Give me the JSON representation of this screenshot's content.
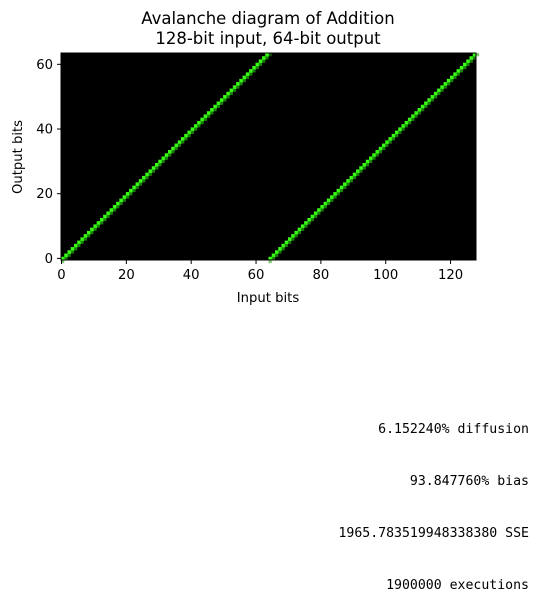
{
  "chart_data": {
    "type": "heatmap",
    "title": "Avalanche diagram of Addition",
    "subtitle": "128-bit input, 64-bit output",
    "xlabel": "Input bits",
    "ylabel": "Output bits",
    "xlim": [
      0,
      128
    ],
    "ylim": [
      0,
      64
    ],
    "xticks": [
      "0",
      "20",
      "40",
      "60",
      "80",
      "100",
      "120"
    ],
    "yticks": [
      "0",
      "20",
      "40",
      "60"
    ],
    "grid": false,
    "background_color": "#000000",
    "cell_color": "#39ff14",
    "cell_dim_color": "#1f9e0c",
    "diagonals": [
      {
        "input_start": 0,
        "input_end": 63,
        "output_start": 0,
        "output_end": 63
      },
      {
        "input_start": 64,
        "input_end": 127,
        "output_start": 0,
        "output_end": 63
      }
    ]
  },
  "stats": {
    "diffusion": "6.152240% diffusion",
    "bias": "93.847760% bias",
    "sse": "1965.783519948338380 SSE",
    "executions": "1900000 executions"
  }
}
